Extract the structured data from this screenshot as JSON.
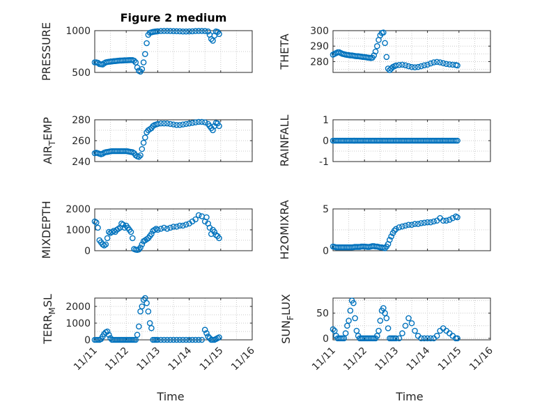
{
  "figure": {
    "title": "Figure 2 medium",
    "xlabel": "Time",
    "marker_color": "#0072bd"
  },
  "chart_data": [
    {
      "id": "pressure",
      "type": "scatter",
      "title": "Figure 2 medium",
      "ylabel": "PRESSURE",
      "ylabel_sub": "",
      "xlim": [
        0,
        5
      ],
      "ylim": [
        500,
        1000
      ],
      "xticks": [
        "11/11",
        "11/12",
        "11/13",
        "11/14",
        "11/15",
        "11/16"
      ],
      "yticks": [
        500,
        1000
      ],
      "show_xticks": false,
      "x": [
        0,
        0.05,
        0.1,
        0.15,
        0.2,
        0.25,
        0.3,
        0.35,
        0.4,
        0.45,
        0.5,
        0.55,
        0.6,
        0.65,
        0.7,
        0.75,
        0.8,
        0.85,
        0.9,
        0.95,
        1,
        1.05,
        1.1,
        1.15,
        1.2,
        1.25,
        1.3,
        1.35,
        1.4,
        1.45,
        1.5,
        1.55,
        1.6,
        1.65,
        1.7,
        1.75,
        1.8,
        1.85,
        1.9,
        1.95,
        2,
        2.1,
        2.2,
        2.3,
        2.4,
        2.5,
        2.6,
        2.7,
        2.8,
        2.9,
        3,
        3.1,
        3.2,
        3.3,
        3.4,
        3.5,
        3.6,
        3.65,
        3.7,
        3.75,
        3.8,
        3.85,
        3.9,
        3.95
      ],
      "y": [
        620,
        620,
        615,
        600,
        598,
        595,
        610,
        620,
        625,
        628,
        630,
        632,
        635,
        636,
        638,
        640,
        642,
        642,
        643,
        645,
        645,
        646,
        647,
        648,
        648,
        640,
        620,
        560,
        520,
        510,
        540,
        620,
        720,
        850,
        950,
        975,
        980,
        985,
        988,
        990,
        992,
        995,
        996,
        996,
        995,
        994,
        993,
        992,
        990,
        990,
        991,
        992,
        995,
        996,
        996,
        995,
        990,
        950,
        900,
        880,
        940,
        990,
        985,
        960
      ]
    },
    {
      "id": "theta",
      "type": "scatter",
      "title": "",
      "ylabel": "THETA",
      "ylabel_sub": "",
      "xlim": [
        0,
        5
      ],
      "ylim": [
        273,
        300
      ],
      "xticks": [
        "11/11",
        "11/12",
        "11/13",
        "11/14",
        "11/15",
        "11/16"
      ],
      "yticks": [
        280,
        290,
        300
      ],
      "show_xticks": false,
      "x": [
        0,
        0.05,
        0.1,
        0.15,
        0.2,
        0.25,
        0.3,
        0.35,
        0.4,
        0.45,
        0.5,
        0.55,
        0.6,
        0.65,
        0.7,
        0.75,
        0.8,
        0.85,
        0.9,
        0.95,
        1,
        1.05,
        1.1,
        1.15,
        1.2,
        1.25,
        1.3,
        1.35,
        1.4,
        1.45,
        1.5,
        1.55,
        1.6,
        1.65,
        1.7,
        1.75,
        1.8,
        1.85,
        1.9,
        1.95,
        2,
        2.1,
        2.2,
        2.3,
        2.4,
        2.5,
        2.6,
        2.7,
        2.8,
        2.9,
        3,
        3.1,
        3.2,
        3.3,
        3.4,
        3.5,
        3.6,
        3.7,
        3.8,
        3.9,
        3.95
      ],
      "y": [
        284.5,
        285,
        285.5,
        286,
        286,
        285.5,
        285,
        284.8,
        284.5,
        284.3,
        284.2,
        284,
        284,
        283.8,
        283.6,
        283.5,
        283.5,
        283.3,
        283.2,
        283,
        283,
        282.8,
        282.6,
        282.5,
        282.3,
        282.5,
        284,
        286.5,
        290,
        294,
        297,
        298.5,
        298.8,
        292,
        283,
        275.5,
        274.5,
        275.5,
        276.5,
        277,
        277.5,
        277.8,
        278,
        277.6,
        277,
        276.5,
        276.3,
        276.5,
        277,
        277.6,
        278,
        278.8,
        279.5,
        279.8,
        279.5,
        279,
        278.5,
        278.2,
        278,
        277.8,
        277.5
      ]
    },
    {
      "id": "air_temp",
      "type": "scatter",
      "title": "",
      "ylabel": "AIR",
      "ylabel_sub": "T",
      "ylabel_end": "EMP",
      "xlim": [
        0,
        5
      ],
      "ylim": [
        240,
        280
      ],
      "xticks": [
        "11/11",
        "11/12",
        "11/13",
        "11/14",
        "11/15",
        "11/16"
      ],
      "yticks": [
        240,
        260,
        280
      ],
      "show_xticks": false,
      "x": [
        0,
        0.05,
        0.1,
        0.15,
        0.2,
        0.25,
        0.3,
        0.35,
        0.4,
        0.45,
        0.5,
        0.55,
        0.6,
        0.65,
        0.7,
        0.75,
        0.8,
        0.85,
        0.9,
        0.95,
        1,
        1.05,
        1.1,
        1.15,
        1.2,
        1.25,
        1.3,
        1.35,
        1.4,
        1.45,
        1.5,
        1.55,
        1.6,
        1.65,
        1.7,
        1.75,
        1.8,
        1.85,
        1.9,
        1.95,
        2,
        2.1,
        2.2,
        2.3,
        2.4,
        2.5,
        2.6,
        2.7,
        2.8,
        2.9,
        3,
        3.1,
        3.2,
        3.3,
        3.4,
        3.5,
        3.6,
        3.65,
        3.7,
        3.75,
        3.8,
        3.85,
        3.9,
        3.95
      ],
      "y": [
        248,
        248.5,
        248,
        247.5,
        247,
        247.5,
        248.5,
        249,
        249.2,
        249.5,
        249.8,
        250,
        250,
        250,
        250,
        250,
        250,
        250,
        250,
        250,
        250,
        249.8,
        249.5,
        249.2,
        249,
        248,
        246,
        245,
        244.5,
        246,
        252,
        258,
        263,
        268,
        270,
        271,
        272,
        274,
        275,
        275.5,
        276,
        276.5,
        276.5,
        276.5,
        276,
        275.5,
        275,
        275,
        275.5,
        276,
        276.5,
        277,
        277.5,
        278,
        278,
        277.5,
        276,
        274,
        272,
        270,
        274,
        277,
        276.5,
        274
      ]
    },
    {
      "id": "rainfall",
      "type": "scatter",
      "title": "",
      "ylabel": "RAINFALL",
      "ylabel_sub": "",
      "xlim": [
        0,
        5
      ],
      "ylim": [
        -1,
        1
      ],
      "xticks": [
        "11/11",
        "11/12",
        "11/13",
        "11/14",
        "11/15",
        "11/16"
      ],
      "yticks": [
        -1,
        0,
        1
      ],
      "show_xticks": false,
      "x": [
        0,
        0.05,
        0.1,
        0.15,
        0.2,
        0.25,
        0.3,
        0.35,
        0.4,
        0.45,
        0.5,
        0.55,
        0.6,
        0.65,
        0.7,
        0.75,
        0.8,
        0.85,
        0.9,
        0.95,
        1,
        1.05,
        1.1,
        1.15,
        1.2,
        1.25,
        1.3,
        1.35,
        1.4,
        1.45,
        1.5,
        1.55,
        1.6,
        1.65,
        1.7,
        1.75,
        1.8,
        1.85,
        1.9,
        1.95,
        2,
        2.05,
        2.1,
        2.15,
        2.2,
        2.25,
        2.3,
        2.35,
        2.4,
        2.45,
        2.5,
        2.55,
        2.6,
        2.65,
        2.7,
        2.75,
        2.8,
        2.85,
        2.9,
        2.95,
        3,
        3.05,
        3.1,
        3.15,
        3.2,
        3.25,
        3.3,
        3.35,
        3.4,
        3.45,
        3.5,
        3.55,
        3.6,
        3.65,
        3.7,
        3.75,
        3.8,
        3.85,
        3.9,
        3.95
      ],
      "y": [
        0,
        0,
        0,
        0,
        0,
        0,
        0,
        0,
        0,
        0,
        0,
        0,
        0,
        0,
        0,
        0,
        0,
        0,
        0,
        0,
        0,
        0,
        0,
        0,
        0,
        0,
        0,
        0,
        0,
        0,
        0,
        0,
        0,
        0,
        0,
        0,
        0,
        0,
        0,
        0,
        0,
        0,
        0,
        0,
        0,
        0,
        0,
        0,
        0,
        0,
        0,
        0,
        0,
        0,
        0,
        0,
        0,
        0,
        0,
        0,
        0,
        0,
        0,
        0,
        0,
        0,
        0,
        0,
        0,
        0,
        0,
        0,
        0,
        0,
        0,
        0,
        0,
        0,
        0,
        0
      ]
    },
    {
      "id": "mixdepth",
      "type": "scatter",
      "title": "",
      "ylabel": "MIXDEPTH",
      "ylabel_sub": "",
      "xlim": [
        0,
        5
      ],
      "ylim": [
        0,
        2000
      ],
      "xticks": [
        "11/11",
        "11/12",
        "11/13",
        "11/14",
        "11/15",
        "11/16"
      ],
      "yticks": [
        0,
        1000,
        2000
      ],
      "show_xticks": false,
      "x": [
        0,
        0.05,
        0.1,
        0.15,
        0.2,
        0.25,
        0.3,
        0.35,
        0.4,
        0.45,
        0.5,
        0.55,
        0.6,
        0.65,
        0.7,
        0.75,
        0.8,
        0.85,
        0.9,
        0.95,
        1,
        1.05,
        1.1,
        1.15,
        1.2,
        1.25,
        1.3,
        1.35,
        1.4,
        1.45,
        1.5,
        1.55,
        1.6,
        1.65,
        1.7,
        1.75,
        1.8,
        1.85,
        1.9,
        1.95,
        2,
        2.1,
        2.2,
        2.3,
        2.4,
        2.5,
        2.6,
        2.7,
        2.8,
        2.9,
        3,
        3.1,
        3.2,
        3.3,
        3.4,
        3.5,
        3.55,
        3.6,
        3.65,
        3.7,
        3.75,
        3.8,
        3.85,
        3.9,
        3.95
      ],
      "y": [
        1400,
        1350,
        1100,
        500,
        400,
        300,
        250,
        300,
        600,
        900,
        850,
        900,
        950,
        900,
        1000,
        1050,
        1100,
        1300,
        1250,
        1100,
        1200,
        1100,
        1000,
        900,
        600,
        80,
        50,
        40,
        60,
        150,
        300,
        450,
        500,
        550,
        600,
        700,
        800,
        950,
        1000,
        1050,
        1000,
        1050,
        1100,
        1050,
        1100,
        1150,
        1150,
        1200,
        1200,
        1250,
        1300,
        1400,
        1500,
        1700,
        1650,
        1400,
        1600,
        1300,
        1100,
        800,
        1000,
        900,
        750,
        700,
        600
      ]
    },
    {
      "id": "h2omixra",
      "type": "scatter",
      "title": "",
      "ylabel": "H2OMIXRA",
      "ylabel_sub": "",
      "xlim": [
        0,
        5
      ],
      "ylim": [
        0,
        5
      ],
      "xticks": [
        "11/11",
        "11/12",
        "11/13",
        "11/14",
        "11/15",
        "11/16"
      ],
      "yticks": [
        0,
        5
      ],
      "show_xticks": false,
      "x": [
        0,
        0.05,
        0.1,
        0.15,
        0.2,
        0.25,
        0.3,
        0.35,
        0.4,
        0.45,
        0.5,
        0.55,
        0.6,
        0.65,
        0.7,
        0.75,
        0.8,
        0.85,
        0.9,
        0.95,
        1,
        1.05,
        1.1,
        1.15,
        1.2,
        1.25,
        1.3,
        1.35,
        1.4,
        1.45,
        1.5,
        1.55,
        1.6,
        1.65,
        1.7,
        1.75,
        1.8,
        1.85,
        1.9,
        1.95,
        2,
        2.1,
        2.2,
        2.3,
        2.4,
        2.5,
        2.6,
        2.7,
        2.8,
        2.9,
        3,
        3.1,
        3.2,
        3.3,
        3.4,
        3.5,
        3.6,
        3.7,
        3.8,
        3.9,
        3.95
      ],
      "y": [
        0.5,
        0.45,
        0.4,
        0.4,
        0.4,
        0.4,
        0.4,
        0.4,
        0.4,
        0.4,
        0.4,
        0.4,
        0.4,
        0.42,
        0.45,
        0.45,
        0.45,
        0.45,
        0.5,
        0.5,
        0.5,
        0.48,
        0.45,
        0.45,
        0.5,
        0.55,
        0.55,
        0.5,
        0.5,
        0.45,
        0.4,
        0.4,
        0.35,
        0.3,
        0.5,
        0.8,
        1.3,
        1.7,
        2.1,
        2.4,
        2.6,
        2.8,
        2.9,
        3.0,
        3.1,
        3.1,
        3.2,
        3.2,
        3.3,
        3.35,
        3.4,
        3.4,
        3.5,
        3.6,
        3.9,
        3.6,
        3.6,
        3.7,
        3.9,
        4.1,
        4.0
      ]
    },
    {
      "id": "terr_msl",
      "type": "scatter",
      "title": "",
      "ylabel": "TERR",
      "ylabel_sub": "M",
      "ylabel_end": "SL",
      "xlim": [
        0,
        5
      ],
      "ylim": [
        0,
        2500
      ],
      "xticks": [
        "11/11",
        "11/12",
        "11/13",
        "11/14",
        "11/15",
        "11/16"
      ],
      "yticks": [
        0,
        1000,
        2000
      ],
      "show_xticks": true,
      "x": [
        0,
        0.05,
        0.1,
        0.15,
        0.2,
        0.25,
        0.3,
        0.35,
        0.4,
        0.45,
        0.5,
        0.55,
        0.6,
        0.65,
        0.7,
        0.75,
        0.8,
        0.85,
        0.9,
        0.95,
        1,
        1.05,
        1.1,
        1.15,
        1.2,
        1.25,
        1.3,
        1.35,
        1.4,
        1.45,
        1.5,
        1.55,
        1.6,
        1.65,
        1.7,
        1.75,
        1.8,
        1.85,
        1.9,
        1.95,
        2,
        2.1,
        2.2,
        2.3,
        2.4,
        2.5,
        2.6,
        2.7,
        2.8,
        2.9,
        3,
        3.1,
        3.2,
        3.3,
        3.4,
        3.5,
        3.55,
        3.6,
        3.65,
        3.7,
        3.75,
        3.8,
        3.85,
        3.9,
        3.95
      ],
      "y": [
        0,
        0,
        0,
        0,
        50,
        200,
        350,
        450,
        500,
        300,
        100,
        0,
        0,
        0,
        0,
        0,
        0,
        0,
        0,
        0,
        0,
        0,
        0,
        0,
        0,
        0,
        0,
        300,
        800,
        1700,
        2000,
        2400,
        2500,
        2200,
        1700,
        1000,
        700,
        0,
        0,
        0,
        0,
        0,
        0,
        0,
        0,
        0,
        0,
        0,
        0,
        0,
        0,
        0,
        0,
        0,
        0,
        600,
        400,
        200,
        100,
        0,
        0,
        0,
        50,
        100,
        150
      ]
    },
    {
      "id": "sun_flux",
      "type": "scatter",
      "title": "",
      "ylabel": "SUN",
      "ylabel_sub": "F",
      "ylabel_end": "LUX",
      "xlim": [
        0,
        5
      ],
      "ylim": [
        -3,
        80
      ],
      "xticks": [
        "11/11",
        "11/12",
        "11/13",
        "11/14",
        "11/15",
        "11/16"
      ],
      "yticks": [
        0,
        50
      ],
      "show_xticks": true,
      "x": [
        0,
        0.05,
        0.1,
        0.15,
        0.2,
        0.25,
        0.3,
        0.35,
        0.4,
        0.45,
        0.5,
        0.55,
        0.6,
        0.65,
        0.7,
        0.75,
        0.8,
        0.85,
        0.9,
        0.95,
        1,
        1.05,
        1.1,
        1.15,
        1.2,
        1.25,
        1.3,
        1.35,
        1.4,
        1.45,
        1.5,
        1.55,
        1.6,
        1.65,
        1.7,
        1.75,
        1.8,
        1.85,
        1.9,
        1.95,
        2,
        2.1,
        2.2,
        2.3,
        2.4,
        2.5,
        2.6,
        2.7,
        2.8,
        2.9,
        3,
        3.1,
        3.2,
        3.3,
        3.4,
        3.5,
        3.6,
        3.7,
        3.8,
        3.9,
        3.95
      ],
      "y": [
        18,
        15,
        5,
        0,
        0,
        0,
        0,
        0,
        10,
        25,
        35,
        55,
        75,
        70,
        40,
        15,
        5,
        0,
        0,
        0,
        0,
        0,
        0,
        0,
        0,
        0,
        0,
        0,
        5,
        15,
        35,
        55,
        60,
        50,
        40,
        20,
        0,
        0,
        0,
        0,
        0,
        0,
        10,
        25,
        40,
        30,
        15,
        5,
        0,
        0,
        0,
        0,
        0,
        5,
        15,
        20,
        15,
        10,
        5,
        0,
        0
      ]
    }
  ]
}
